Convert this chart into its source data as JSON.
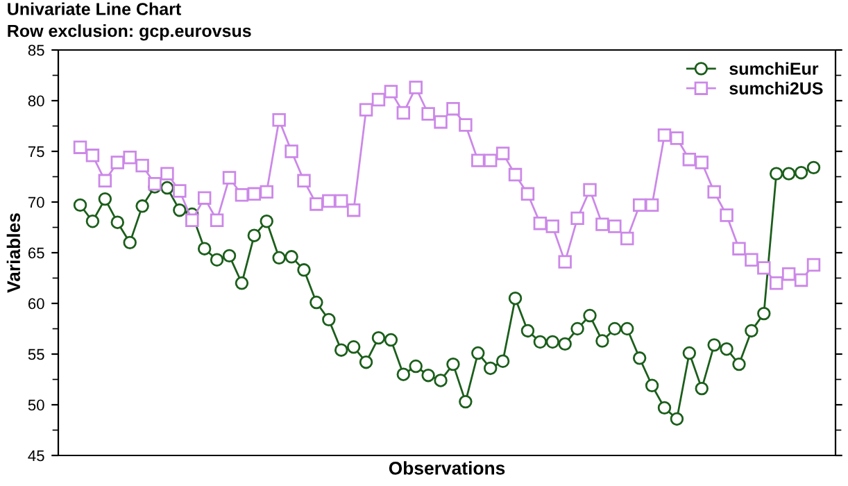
{
  "chart_data": {
    "type": "line",
    "title": "Univariate Line Chart",
    "subtitle": "Row exclusion: gcp.eurovsus",
    "xlabel": "Observations",
    "ylabel": "Variables",
    "categories": [
      null,
      null,
      null,
      null,
      null,
      null,
      null,
      null,
      null,
      null,
      null,
      null,
      null,
      null,
      null,
      null,
      null,
      null,
      null,
      null,
      null,
      null,
      null,
      null,
      null,
      null,
      null,
      null,
      null,
      null,
      null,
      null,
      null,
      null,
      null,
      null,
      null,
      null,
      null,
      null,
      null,
      null,
      null,
      null,
      null,
      null,
      null,
      null,
      null,
      null,
      null,
      null,
      null,
      null,
      null,
      null,
      null,
      null,
      null,
      null
    ],
    "series": [
      {
        "name": "sumchiEur",
        "color": "#1b5e1b",
        "marker": "circle",
        "values": [
          69.7,
          68.1,
          70.3,
          68.0,
          66.0,
          69.6,
          71.5,
          71.4,
          69.2,
          68.8,
          65.4,
          64.3,
          64.7,
          62.0,
          66.7,
          68.1,
          64.5,
          64.6,
          63.3,
          60.1,
          58.4,
          55.4,
          55.7,
          54.2,
          56.6,
          56.4,
          53.0,
          53.8,
          52.9,
          52.4,
          54.0,
          50.3,
          55.1,
          53.6,
          54.3,
          60.5,
          57.3,
          56.2,
          56.2,
          56.0,
          57.5,
          58.8,
          56.3,
          57.5,
          57.5,
          54.6,
          51.9,
          49.7,
          48.6,
          55.1,
          51.6,
          55.9,
          55.5,
          54.0,
          57.3,
          59.0,
          72.8,
          72.8,
          72.9,
          73.4
        ]
      },
      {
        "name": "sumchi2US",
        "color": "#cc88e8",
        "marker": "square",
        "values": [
          75.4,
          74.6,
          72.1,
          73.9,
          74.4,
          73.6,
          71.8,
          72.8,
          71.1,
          68.2,
          70.4,
          68.2,
          72.4,
          70.7,
          70.8,
          71.0,
          78.1,
          75.0,
          72.1,
          69.8,
          70.1,
          70.1,
          69.2,
          79.1,
          80.1,
          80.9,
          78.8,
          81.3,
          78.7,
          77.9,
          79.2,
          77.6,
          74.1,
          74.1,
          74.8,
          72.7,
          70.8,
          67.9,
          67.6,
          64.1,
          68.4,
          71.2,
          67.8,
          67.6,
          66.4,
          69.7,
          69.7,
          76.6,
          76.3,
          74.2,
          73.9,
          71.0,
          68.7,
          65.4,
          64.3,
          63.5,
          62.0,
          62.9,
          62.3,
          63.8
        ]
      }
    ],
    "ylim": [
      45,
      85
    ],
    "yticks": [
      45,
      50,
      55,
      60,
      65,
      70,
      75,
      80,
      85
    ],
    "tick_labels": "y",
    "grid": false,
    "legend": "top right",
    "line_style": "solid"
  }
}
